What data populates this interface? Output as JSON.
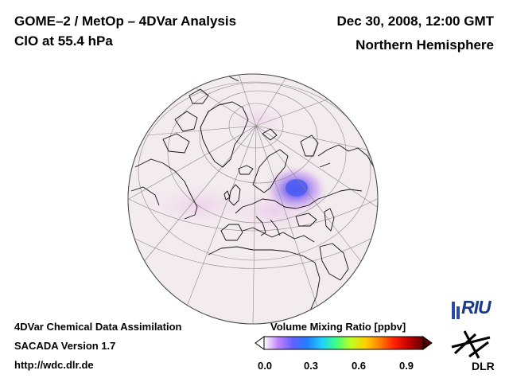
{
  "header": {
    "title": "GOME–2 / MetOp – 4DVar Analysis",
    "species": "ClO at 55.4 hPa",
    "datetime": "Dec 30, 2008, 12:00 GMT",
    "region": "Northern Hemisphere"
  },
  "footer": {
    "line1": "4DVar Chemical Data Assimilation",
    "line2": "SACADA Version 1.7",
    "line3": "http://wdc.dlr.de"
  },
  "colorbar": {
    "title": "Volume Mixing Ratio [ppbv]",
    "ticks": [
      "0.0",
      "0.3",
      "0.6",
      "0.9"
    ],
    "tick_values": [
      0.0,
      0.3,
      0.6,
      0.9
    ],
    "range": [
      0.0,
      1.0
    ],
    "colors": [
      "#ffffff",
      "#c080ff",
      "#6060ff",
      "#2080ff",
      "#20d0ff",
      "#40ff80",
      "#c0ff20",
      "#ffd000",
      "#ff8000",
      "#ff2000",
      "#c00000",
      "#600000"
    ]
  },
  "map": {
    "projection": "orthographic",
    "hemisphere": "Northern Hemisphere",
    "background_color": "#f3ecec",
    "anomaly_peak_value": 0.25
  },
  "logos": {
    "riu": "RIU",
    "dlr": "DLR"
  }
}
